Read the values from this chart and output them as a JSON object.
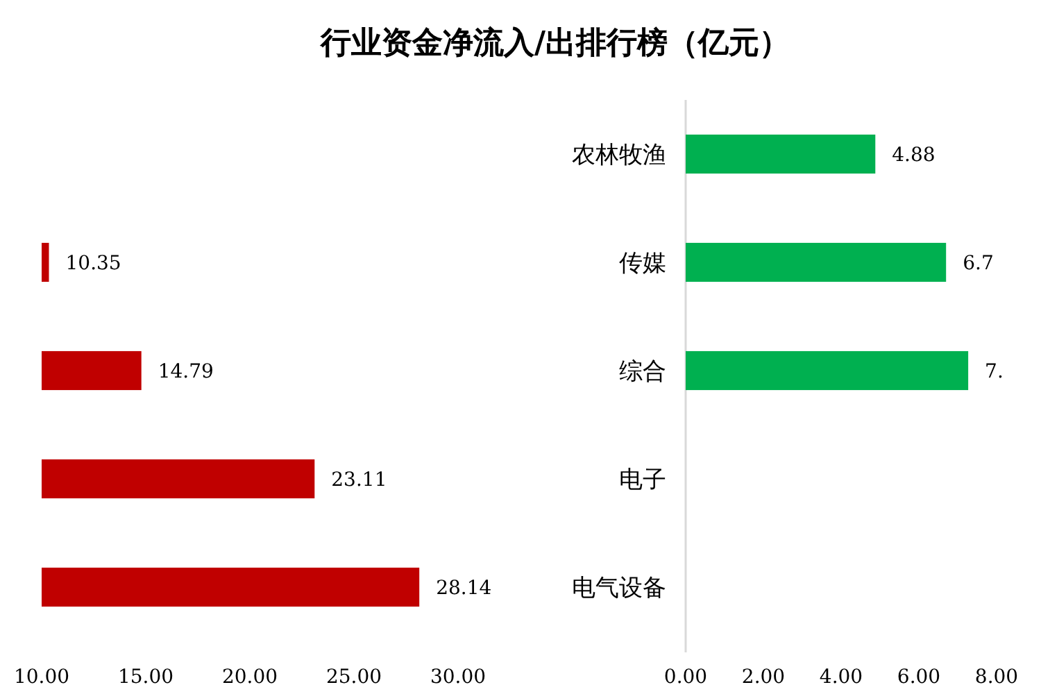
{
  "chart_data": [
    {
      "type": "bar",
      "title": "行业资金净流入/出排行榜（亿元）",
      "orientation": "horizontal",
      "categories": [
        null,
        null,
        null,
        null
      ],
      "values": [
        10.35,
        14.79,
        23.11,
        28.14
      ],
      "color": "#c00000",
      "value_labels": [
        "10.35",
        "14.79",
        "23.11",
        "28.14"
      ],
      "xlim": [
        10,
        30
      ],
      "xticks": [
        {
          "value": 10,
          "label": "10.00"
        },
        {
          "value": 15,
          "label": "15.00"
        },
        {
          "value": 20,
          "label": "20.00"
        },
        {
          "value": 25,
          "label": "25.00"
        },
        {
          "value": 30,
          "label": "30.00"
        }
      ]
    },
    {
      "type": "bar",
      "orientation": "horizontal",
      "categories": [
        "农林牧渔",
        "传媒",
        "综合",
        "电子",
        "电气设备"
      ],
      "values": [
        4.88,
        6.7,
        7.27,
        null,
        null
      ],
      "color": "#00b050",
      "value_labels": [
        "4.88",
        "6.7",
        "7.",
        null,
        null
      ],
      "xlim": [
        0,
        8
      ],
      "xticks": [
        {
          "value": 0,
          "label": "0.00"
        },
        {
          "value": 2,
          "label": "2.00"
        },
        {
          "value": 4,
          "label": "4.00"
        },
        {
          "value": 6,
          "label": "6.00"
        },
        {
          "value": 8,
          "label": "8.00"
        }
      ]
    }
  ]
}
